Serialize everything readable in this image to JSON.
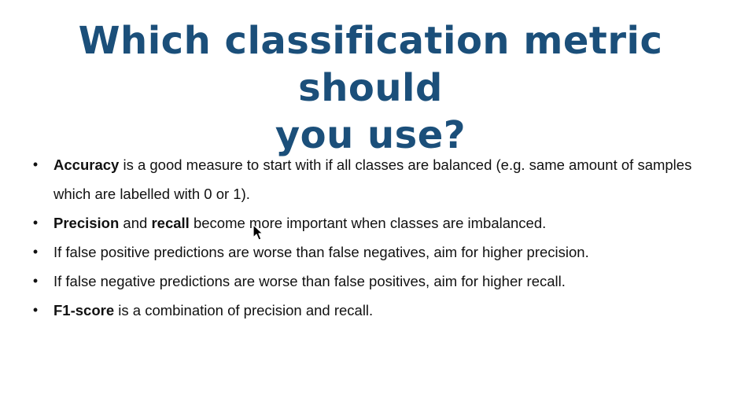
{
  "title": {
    "line1": "Which classification metric should",
    "line2": "you use?"
  },
  "bullets": [
    {
      "bold1": "Accuracy",
      "text1": " is a good measure to start with if all classes are balanced (e.g. same amount of samples which are labelled with 0 or 1)."
    },
    {
      "bold1": "Precision",
      "text1": " and ",
      "bold2": "recall",
      "text2": " become more important when classes are imbalanced."
    },
    {
      "text1": "If false positive predictions are worse than false negatives, aim for higher precision."
    },
    {
      "text1": "If false negative predictions are worse than false positives, aim for higher recall."
    },
    {
      "bold1": "F1-score",
      "text1": " is a combination of precision and recall."
    }
  ],
  "bullet_glyph": "•",
  "colors": {
    "title": "#1b4f7a",
    "text": "#111111",
    "background": "#ffffff"
  },
  "icons": {
    "cursor": "mouse-pointer-icon"
  }
}
